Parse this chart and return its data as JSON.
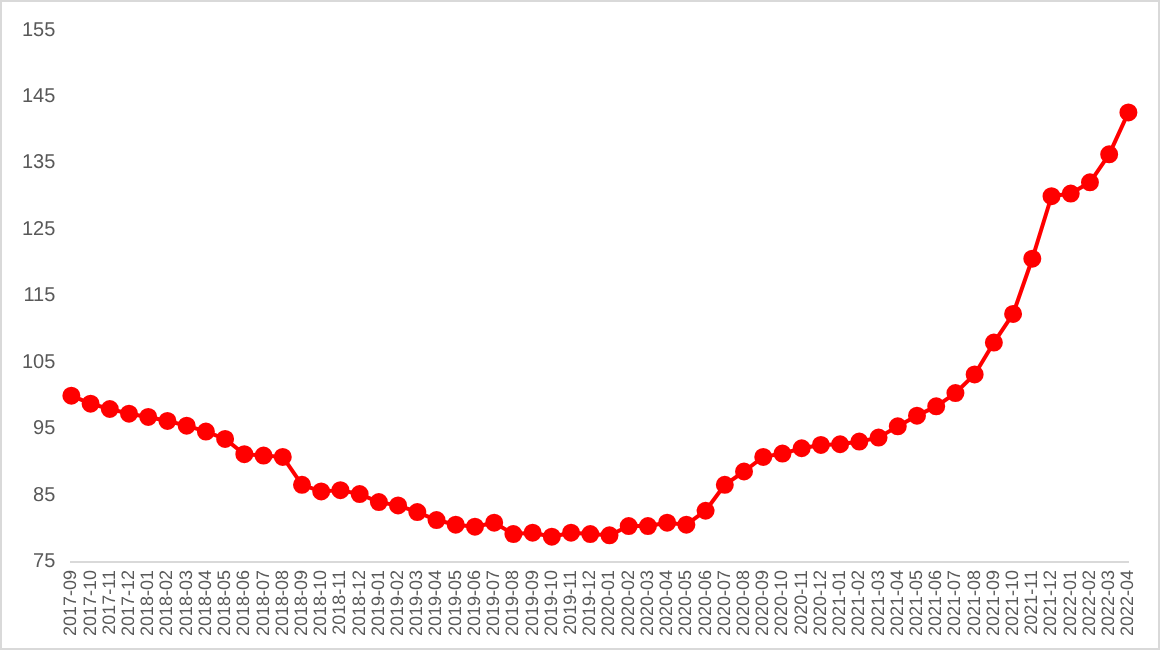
{
  "chart_data": {
    "type": "line",
    "categories": [
      "2017-09",
      "2017-10",
      "2017-11",
      "2017-12",
      "2018-01",
      "2018-02",
      "2018-03",
      "2018-04",
      "2018-05",
      "2018-06",
      "2018-07",
      "2018-08",
      "2018-09",
      "2018-10",
      "2018-11",
      "2018-12",
      "2019-01",
      "2019-02",
      "2019-03",
      "2019-04",
      "2019-05",
      "2019-06",
      "2019-07",
      "2019-08",
      "2019-09",
      "2019-10",
      "2019-11",
      "2019-12",
      "2020-01",
      "2020-02",
      "2020-03",
      "2020-04",
      "2020-05",
      "2020-06",
      "2020-07",
      "2020-08",
      "2020-09",
      "2020-10",
      "2020-11",
      "2020-12",
      "2021-01",
      "2021-02",
      "2021-03",
      "2021-04",
      "2021-05",
      "2021-06",
      "2021-07",
      "2021-08",
      "2021-09",
      "2021-10",
      "2021-11",
      "2021-12",
      "2022-01",
      "2022-02",
      "2022-03",
      "2022-04"
    ],
    "series": [
      {
        "color": "#ff0000",
        "values": [
          100,
          98.8,
          98,
          97.3,
          96.8,
          96.2,
          95.5,
          94.6,
          93.5,
          91.2,
          91,
          90.8,
          86.6,
          85.6,
          85.8,
          85.2,
          84,
          83.5,
          82.5,
          81.3,
          80.6,
          80.3,
          80.9,
          79.2,
          79.4,
          78.8,
          79.4,
          79.2,
          79,
          80.4,
          80.4,
          80.9,
          80.6,
          82.7,
          86.6,
          88.6,
          90.8,
          91.3,
          92.1,
          92.6,
          92.7,
          93.1,
          93.7,
          95.4,
          97,
          98.4,
          100.4,
          103.2,
          108,
          112.3,
          120.6,
          130,
          130.4,
          132.1,
          136.3,
          142.6
        ]
      }
    ],
    "ylim": [
      75,
      155
    ],
    "yticks": [
      75,
      85,
      95,
      105,
      115,
      125,
      135,
      145,
      155
    ],
    "grid": false,
    "legend": false,
    "marker": "circle",
    "line_style": "solid"
  }
}
